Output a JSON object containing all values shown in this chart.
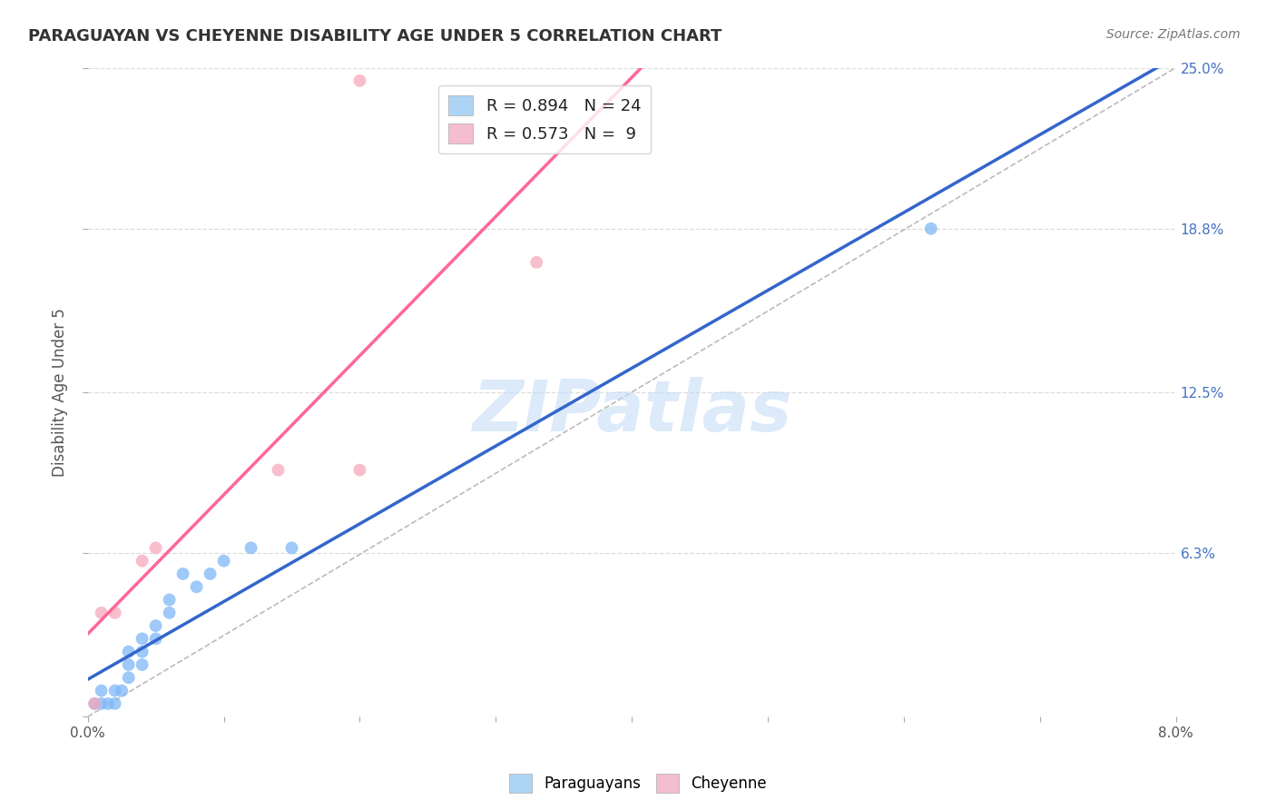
{
  "title": "PARAGUAYAN VS CHEYENNE DISABILITY AGE UNDER 5 CORRELATION CHART",
  "source": "Source: ZipAtlas.com",
  "ylabel_label": "Disability Age Under 5",
  "x_min": 0.0,
  "x_max": 0.08,
  "y_min": 0.0,
  "y_max": 0.25,
  "y_ticks": [
    0.0,
    0.063,
    0.125,
    0.188,
    0.25
  ],
  "y_tick_labels_right": [
    "",
    "6.3%",
    "12.5%",
    "18.8%",
    "25.0%"
  ],
  "paraguayan_x": [
    0.0005,
    0.001,
    0.001,
    0.0015,
    0.002,
    0.002,
    0.0025,
    0.003,
    0.003,
    0.003,
    0.004,
    0.004,
    0.004,
    0.005,
    0.005,
    0.006,
    0.006,
    0.007,
    0.008,
    0.009,
    0.01,
    0.012,
    0.015,
    0.062
  ],
  "paraguayan_y": [
    0.005,
    0.005,
    0.01,
    0.005,
    0.005,
    0.01,
    0.01,
    0.015,
    0.02,
    0.025,
    0.02,
    0.025,
    0.03,
    0.03,
    0.035,
    0.04,
    0.045,
    0.055,
    0.05,
    0.055,
    0.06,
    0.065,
    0.065,
    0.188
  ],
  "cheyenne_x": [
    0.0005,
    0.001,
    0.002,
    0.004,
    0.005,
    0.014,
    0.02,
    0.033,
    0.02
  ],
  "cheyenne_y": [
    0.005,
    0.04,
    0.04,
    0.06,
    0.065,
    0.095,
    0.095,
    0.175,
    0.245
  ],
  "paraguayan_color": "#7EB8F7",
  "cheyenne_color": "#F7A8BC",
  "paraguayan_line_color": "#3366CC",
  "cheyenne_line_color": "#FF6699",
  "diagonal_color": "#BBBBBB",
  "R_paraguayan": 0.894,
  "N_paraguayan": 24,
  "R_cheyenne": 0.573,
  "N_cheyenne": 9,
  "watermark": "ZIPatlas",
  "background_color": "#FFFFFF",
  "grid_color": "#DDDDDD"
}
